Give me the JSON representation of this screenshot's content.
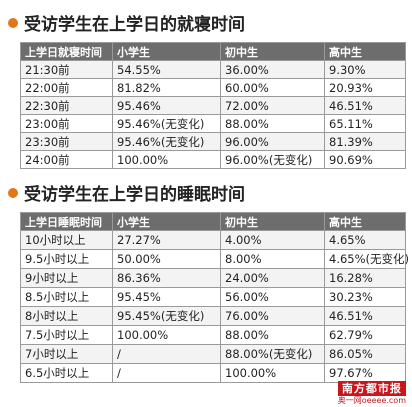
{
  "chart_data": [
    {
      "type": "table",
      "title": "受访学生在上学日的就寝时间",
      "columns": [
        "上学日就寝时间",
        "小学生",
        "初中生",
        "高中生"
      ],
      "rows": [
        [
          "21:30前",
          "54.55%",
          "36.00%",
          "9.30%"
        ],
        [
          "22:00前",
          "81.82%",
          "60.00%",
          "20.93%"
        ],
        [
          "22:30前",
          "95.46%",
          "72.00%",
          "46.51%"
        ],
        [
          "23:00前",
          "95.46%(无变化)",
          "88.00%",
          "65.11%"
        ],
        [
          "23:30前",
          "95.46%(无变化)",
          "96.00%",
          "81.39%"
        ],
        [
          "24:00前",
          "100.00%",
          "96.00%(无变化)",
          "90.69%"
        ]
      ]
    },
    {
      "type": "table",
      "title": "受访学生在上学日的睡眠时间",
      "columns": [
        "上学日睡眠时间",
        "小学生",
        "初中生",
        "高中生"
      ],
      "rows": [
        [
          "10小时以上",
          "27.27%",
          "4.00%",
          "4.65%"
        ],
        [
          "9.5小时以上",
          "50.00%",
          "8.00%",
          "4.65%(无变化)"
        ],
        [
          "9小时以上",
          "86.36%",
          "24.00%",
          "16.28%"
        ],
        [
          "8.5小时以上",
          "95.45%",
          "56.00%",
          "30.23%"
        ],
        [
          "8小时以上",
          "95.45%(无变化)",
          "76.00%",
          "46.51%"
        ],
        [
          "7.5小时以上",
          "100.00%",
          "88.00%",
          "62.79%"
        ],
        [
          "7小时以上",
          "/",
          "88.00%(无变化)",
          "86.05%"
        ],
        [
          "6.5小时以上",
          "/",
          "100.00%",
          "97.67%"
        ]
      ]
    }
  ],
  "colors": {
    "bullet": "#e07818",
    "header_bg": "#6d6d6d",
    "logo_red": "#c8161d"
  },
  "logo": {
    "line1": "南方都市报",
    "line2": "奥一网oeeee.com"
  }
}
